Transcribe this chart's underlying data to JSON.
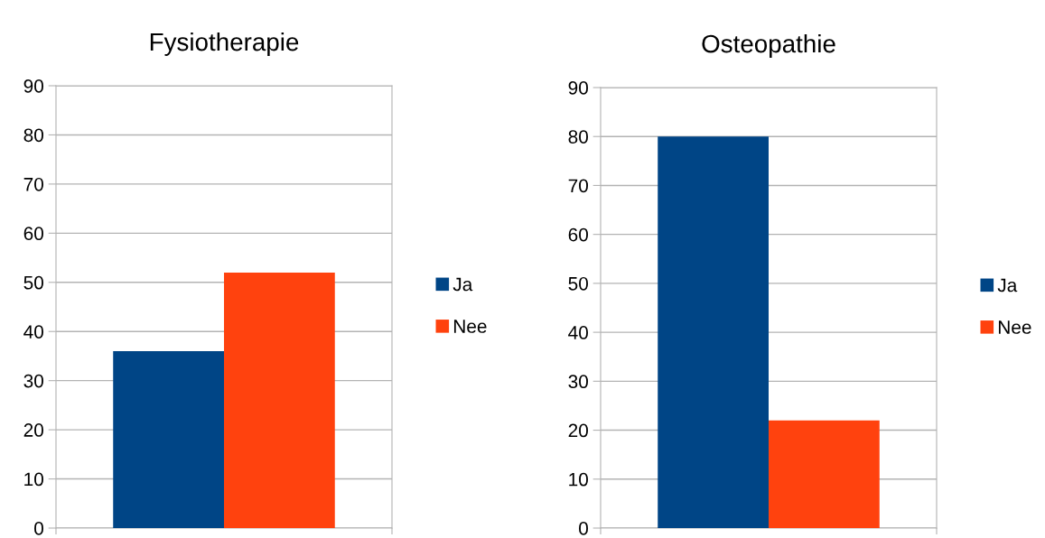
{
  "chart_data": [
    {
      "type": "bar",
      "title": "Fysiotherapie",
      "categories": [
        null
      ],
      "series": [
        {
          "name": "Ja",
          "color": "#004586",
          "values": [
            36
          ]
        },
        {
          "name": "Nee",
          "color": "#ff420e",
          "values": [
            52
          ]
        }
      ],
      "ylim": [
        0,
        90
      ],
      "yticks": [
        0,
        10,
        20,
        30,
        40,
        50,
        60,
        70,
        80,
        90
      ],
      "grid": "y",
      "legend": "right",
      "tick_labels": "y"
    },
    {
      "type": "bar",
      "title": "Osteopathie",
      "categories": [
        null
      ],
      "series": [
        {
          "name": "Ja",
          "color": "#004586",
          "values": [
            80
          ]
        },
        {
          "name": "Nee",
          "color": "#ff420e",
          "values": [
            22
          ]
        }
      ],
      "ylim": [
        0,
        90
      ],
      "yticks": [
        0,
        10,
        20,
        30,
        40,
        50,
        60,
        70,
        80,
        90
      ],
      "grid": "y",
      "legend": "right",
      "tick_labels": "y"
    }
  ]
}
